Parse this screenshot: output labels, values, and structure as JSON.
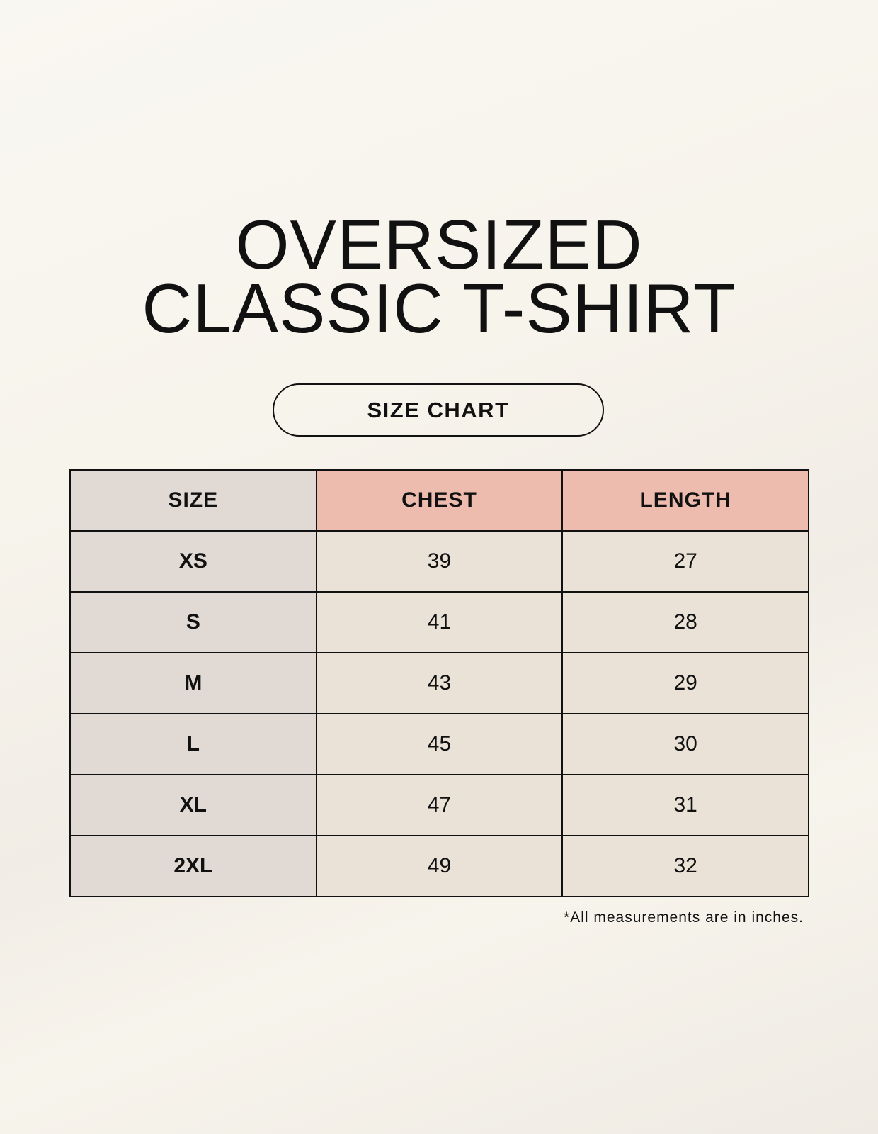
{
  "title_line1": "OVERSIZED",
  "title_line2": "CLASSIC T-SHIRT",
  "badge": "SIZE CHART",
  "table": {
    "headers": [
      "SIZE",
      "CHEST",
      "LENGTH"
    ],
    "rows": [
      [
        "XS",
        "39",
        "27"
      ],
      [
        "S",
        "41",
        "28"
      ],
      [
        "M",
        "43",
        "29"
      ],
      [
        "L",
        "45",
        "30"
      ],
      [
        "XL",
        "47",
        "31"
      ],
      [
        "2XL",
        "49",
        "32"
      ]
    ]
  },
  "note": "*All measurements are in inches.",
  "colors": {
    "size_column": "#e1d9d3",
    "header_highlight": "#eebcae",
    "value_cells": "#ebe2d7"
  }
}
